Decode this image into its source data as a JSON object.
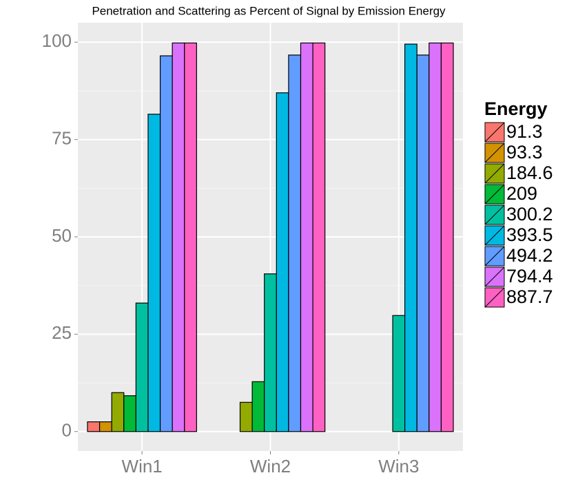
{
  "chart_data": {
    "type": "bar",
    "title": "Penetration and Scattering as Percent of Signal by Emission Energy",
    "categories": [
      "Win1",
      "Win2",
      "Win3"
    ],
    "legend_title": "Energy",
    "series": [
      {
        "name": "91.3",
        "color": "#F8766D",
        "values": [
          2.5,
          0,
          0
        ]
      },
      {
        "name": "93.3",
        "color": "#D39200",
        "values": [
          2.5,
          0,
          0
        ]
      },
      {
        "name": "184.6",
        "color": "#93AA00",
        "values": [
          10,
          7.5,
          0
        ]
      },
      {
        "name": "209",
        "color": "#00BA38",
        "values": [
          9.2,
          12.8,
          0
        ]
      },
      {
        "name": "300.2",
        "color": "#00C19F",
        "values": [
          33,
          40.5,
          29.8
        ]
      },
      {
        "name": "393.5",
        "color": "#00B9E3",
        "values": [
          81.5,
          87,
          99.5
        ]
      },
      {
        "name": "494.2",
        "color": "#619CFF",
        "values": [
          96.5,
          96.7,
          96.7
        ]
      },
      {
        "name": "794.4",
        "color": "#DB72FB",
        "values": [
          99.8,
          99.8,
          99.8
        ]
      },
      {
        "name": "887.7",
        "color": "#FF61C3",
        "values": [
          99.8,
          99.8,
          99.8
        ]
      }
    ],
    "ylim": [
      -5,
      105
    ],
    "yticks": [
      0,
      25,
      50,
      75,
      100
    ],
    "grid": true,
    "legend": "right"
  }
}
